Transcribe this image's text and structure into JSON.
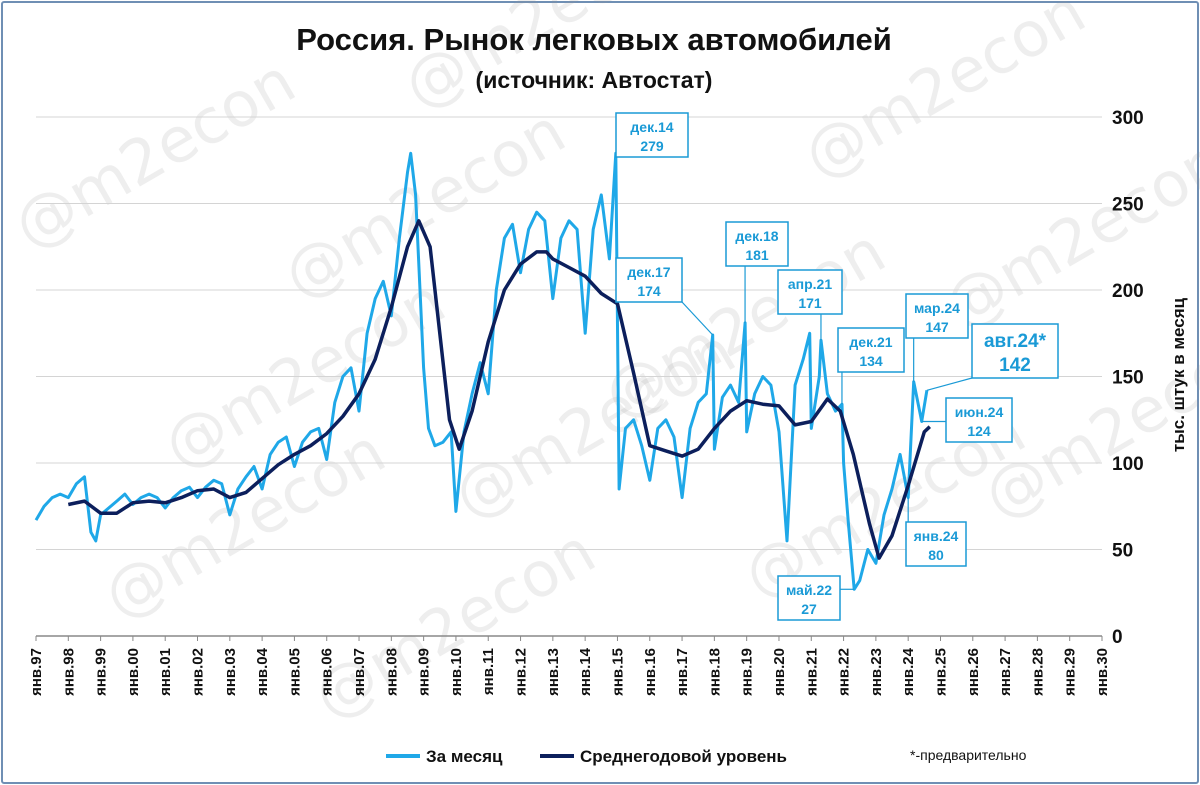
{
  "chart_data": {
    "type": "line",
    "title": "Россия. Рынок легковых автомобилей",
    "subtitle": "(источник: Автостат)",
    "ylabel": "тыс. штук в месяц",
    "ylim": [
      0,
      300
    ],
    "yticks": [
      0,
      50,
      100,
      150,
      200,
      250,
      300
    ],
    "xlim": [
      1997,
      2030
    ],
    "xticks": [
      "янв.97",
      "янв.98",
      "янв.99",
      "янв.00",
      "янв.01",
      "янв.02",
      "янв.03",
      "янв.04",
      "янв.05",
      "янв.06",
      "янв.07",
      "янв.08",
      "янв.09",
      "янв.10",
      "янв.11",
      "янв.12",
      "янв.13",
      "янв.14",
      "янв.15",
      "янв.16",
      "янв.17",
      "янв.18",
      "янв.19",
      "янв.20",
      "янв.21",
      "янв.22",
      "янв.23",
      "янв.24",
      "янв.25",
      "янв.26",
      "янв.27",
      "янв.28",
      "янв.29",
      "янв.30"
    ],
    "grid": true,
    "legend": "bottom",
    "note": "*-предварительно",
    "series": [
      {
        "name": "За месяц",
        "color": "#1fa8e8",
        "points": [
          [
            1997.0,
            67
          ],
          [
            1997.25,
            75
          ],
          [
            1997.5,
            80
          ],
          [
            1997.75,
            82
          ],
          [
            1998.0,
            80
          ],
          [
            1998.25,
            88
          ],
          [
            1998.5,
            92
          ],
          [
            1998.7,
            60
          ],
          [
            1998.85,
            55
          ],
          [
            1999.0,
            70
          ],
          [
            1999.25,
            74
          ],
          [
            1999.5,
            78
          ],
          [
            1999.75,
            82
          ],
          [
            2000.0,
            76
          ],
          [
            2000.25,
            80
          ],
          [
            2000.5,
            82
          ],
          [
            2000.75,
            80
          ],
          [
            2001.0,
            74
          ],
          [
            2001.25,
            80
          ],
          [
            2001.5,
            84
          ],
          [
            2001.75,
            86
          ],
          [
            2002.0,
            80
          ],
          [
            2002.25,
            86
          ],
          [
            2002.5,
            90
          ],
          [
            2002.75,
            88
          ],
          [
            2003.0,
            70
          ],
          [
            2003.25,
            85
          ],
          [
            2003.5,
            92
          ],
          [
            2003.75,
            98
          ],
          [
            2004.0,
            85
          ],
          [
            2004.25,
            105
          ],
          [
            2004.5,
            112
          ],
          [
            2004.75,
            115
          ],
          [
            2005.0,
            98
          ],
          [
            2005.25,
            112
          ],
          [
            2005.5,
            118
          ],
          [
            2005.75,
            120
          ],
          [
            2006.0,
            102
          ],
          [
            2006.25,
            135
          ],
          [
            2006.5,
            150
          ],
          [
            2006.75,
            155
          ],
          [
            2007.0,
            130
          ],
          [
            2007.25,
            175
          ],
          [
            2007.5,
            195
          ],
          [
            2007.75,
            205
          ],
          [
            2008.0,
            185
          ],
          [
            2008.25,
            230
          ],
          [
            2008.5,
            268
          ],
          [
            2008.6,
            279
          ],
          [
            2008.75,
            255
          ],
          [
            2009.0,
            155
          ],
          [
            2009.15,
            120
          ],
          [
            2009.35,
            110
          ],
          [
            2009.6,
            112
          ],
          [
            2009.85,
            118
          ],
          [
            2010.0,
            72
          ],
          [
            2010.25,
            118
          ],
          [
            2010.5,
            140
          ],
          [
            2010.75,
            158
          ],
          [
            2011.0,
            140
          ],
          [
            2011.25,
            200
          ],
          [
            2011.5,
            230
          ],
          [
            2011.75,
            238
          ],
          [
            2012.0,
            210
          ],
          [
            2012.25,
            235
          ],
          [
            2012.5,
            245
          ],
          [
            2012.75,
            240
          ],
          [
            2013.0,
            195
          ],
          [
            2013.25,
            230
          ],
          [
            2013.5,
            240
          ],
          [
            2013.75,
            235
          ],
          [
            2014.0,
            175
          ],
          [
            2014.25,
            235
          ],
          [
            2014.5,
            255
          ],
          [
            2014.75,
            218
          ],
          [
            2014.95,
            279
          ],
          [
            2015.05,
            85
          ],
          [
            2015.25,
            120
          ],
          [
            2015.5,
            125
          ],
          [
            2015.75,
            110
          ],
          [
            2016.0,
            90
          ],
          [
            2016.25,
            120
          ],
          [
            2016.5,
            125
          ],
          [
            2016.75,
            115
          ],
          [
            2017.0,
            80
          ],
          [
            2017.25,
            120
          ],
          [
            2017.5,
            135
          ],
          [
            2017.75,
            140
          ],
          [
            2017.95,
            174
          ],
          [
            2018.0,
            108
          ],
          [
            2018.25,
            138
          ],
          [
            2018.5,
            145
          ],
          [
            2018.75,
            135
          ],
          [
            2018.95,
            181
          ],
          [
            2019.0,
            118
          ],
          [
            2019.25,
            140
          ],
          [
            2019.5,
            150
          ],
          [
            2019.75,
            145
          ],
          [
            2020.0,
            118
          ],
          [
            2020.25,
            55
          ],
          [
            2020.5,
            145
          ],
          [
            2020.75,
            160
          ],
          [
            2020.95,
            175
          ],
          [
            2021.0,
            120
          ],
          [
            2021.25,
            150
          ],
          [
            2021.3,
            171
          ],
          [
            2021.5,
            140
          ],
          [
            2021.75,
            130
          ],
          [
            2021.95,
            134
          ],
          [
            2022.0,
            100
          ],
          [
            2022.15,
            65
          ],
          [
            2022.33,
            27
          ],
          [
            2022.5,
            32
          ],
          [
            2022.75,
            50
          ],
          [
            2023.0,
            42
          ],
          [
            2023.25,
            70
          ],
          [
            2023.5,
            85
          ],
          [
            2023.75,
            105
          ],
          [
            2024.0,
            80
          ],
          [
            2024.17,
            147
          ],
          [
            2024.42,
            124
          ],
          [
            2024.58,
            142
          ]
        ]
      },
      {
        "name": "Среднегодовой уровень",
        "color": "#0c1f5c",
        "points": [
          [
            1998.0,
            76
          ],
          [
            1998.5,
            78
          ],
          [
            1999.0,
            71
          ],
          [
            1999.5,
            71
          ],
          [
            2000.0,
            77
          ],
          [
            2000.5,
            78
          ],
          [
            2001.0,
            77
          ],
          [
            2001.5,
            80
          ],
          [
            2002.0,
            84
          ],
          [
            2002.5,
            85
          ],
          [
            2003.0,
            80
          ],
          [
            2003.5,
            83
          ],
          [
            2004.0,
            91
          ],
          [
            2004.5,
            99
          ],
          [
            2005.0,
            105
          ],
          [
            2005.5,
            110
          ],
          [
            2006.0,
            117
          ],
          [
            2006.5,
            127
          ],
          [
            2007.0,
            140
          ],
          [
            2007.5,
            160
          ],
          [
            2008.0,
            190
          ],
          [
            2008.5,
            225
          ],
          [
            2008.85,
            240
          ],
          [
            2009.2,
            225
          ],
          [
            2009.5,
            175
          ],
          [
            2009.8,
            125
          ],
          [
            2010.1,
            108
          ],
          [
            2010.5,
            130
          ],
          [
            2011.0,
            170
          ],
          [
            2011.5,
            200
          ],
          [
            2012.0,
            215
          ],
          [
            2012.5,
            222
          ],
          [
            2012.8,
            222
          ],
          [
            2013.0,
            218
          ],
          [
            2013.5,
            213
          ],
          [
            2014.0,
            208
          ],
          [
            2014.5,
            198
          ],
          [
            2015.0,
            192
          ],
          [
            2015.5,
            152
          ],
          [
            2016.0,
            110
          ],
          [
            2016.5,
            107
          ],
          [
            2017.0,
            104
          ],
          [
            2017.5,
            108
          ],
          [
            2018.0,
            120
          ],
          [
            2018.5,
            130
          ],
          [
            2019.0,
            136
          ],
          [
            2019.5,
            134
          ],
          [
            2020.0,
            133
          ],
          [
            2020.5,
            122
          ],
          [
            2021.0,
            124
          ],
          [
            2021.5,
            137
          ],
          [
            2021.9,
            130
          ],
          [
            2022.3,
            105
          ],
          [
            2022.8,
            65
          ],
          [
            2023.1,
            45
          ],
          [
            2023.5,
            58
          ],
          [
            2024.0,
            87
          ],
          [
            2024.5,
            118
          ],
          [
            2024.67,
            121
          ]
        ]
      }
    ],
    "annotations": [
      {
        "label": "дек.14",
        "value": "279",
        "x": 2014.95,
        "y": 279
      },
      {
        "label": "дек.17",
        "value": "174",
        "x": 2017.95,
        "y": 174
      },
      {
        "label": "дек.18",
        "value": "181",
        "x": 2018.95,
        "y": 181
      },
      {
        "label": "апр.21",
        "value": "171",
        "x": 2021.3,
        "y": 171
      },
      {
        "label": "дек.21",
        "value": "134",
        "x": 2021.95,
        "y": 134
      },
      {
        "label": "май.22",
        "value": "27",
        "x": 2022.33,
        "y": 27
      },
      {
        "label": "янв.24",
        "value": "80",
        "x": 2024.0,
        "y": 80
      },
      {
        "label": "мар.24",
        "value": "147",
        "x": 2024.17,
        "y": 147
      },
      {
        "label": "июн.24",
        "value": "124",
        "x": 2024.42,
        "y": 124
      },
      {
        "label": "авг.24*",
        "value": "142",
        "x": 2024.58,
        "y": 142
      }
    ]
  },
  "watermark": "@m2econ"
}
